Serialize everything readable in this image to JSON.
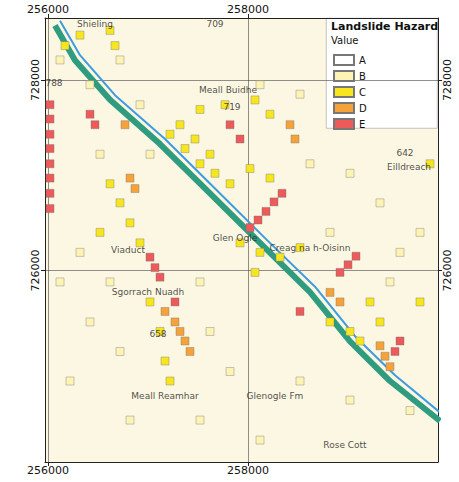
{
  "chart_data": {
    "type": "map",
    "title": "Landslide Hazard",
    "subtitle": "Value",
    "xlim": [
      255970,
      259900
    ],
    "ylim": [
      723990,
      728650
    ],
    "xticks": [
      256000,
      258000
    ],
    "yticks": [
      726000,
      728000
    ],
    "grid": true,
    "legend": "upper right",
    "series": [
      {
        "name": "A",
        "color": "#ffffff",
        "marker": "square",
        "values": []
      },
      {
        "name": "B",
        "color": "#fdf3b4",
        "marker": "square",
        "values": [
          [
            256120,
            728210
          ],
          [
            256420,
            727950
          ],
          [
            256720,
            728210
          ],
          [
            256920,
            727740
          ],
          [
            257020,
            727220
          ],
          [
            256520,
            727220
          ],
          [
            256320,
            726190
          ],
          [
            256620,
            725880
          ],
          [
            256420,
            725460
          ],
          [
            256720,
            725150
          ],
          [
            257520,
            725880
          ],
          [
            257620,
            725360
          ],
          [
            257820,
            724940
          ],
          [
            256820,
            724430
          ],
          [
            257520,
            724430
          ],
          [
            258120,
            727950
          ],
          [
            258520,
            727850
          ],
          [
            258620,
            727120
          ],
          [
            259020,
            727020
          ],
          [
            259320,
            726710
          ],
          [
            258820,
            726400
          ],
          [
            259520,
            726190
          ],
          [
            259420,
            725880
          ],
          [
            259720,
            726400
          ],
          [
            258520,
            724840
          ],
          [
            259020,
            724640
          ],
          [
            259620,
            724530
          ],
          [
            258120,
            724220
          ],
          [
            256120,
            725880
          ],
          [
            256220,
            724840
          ]
        ]
      },
      {
        "name": "C",
        "color": "#f7e51f",
        "marker": "square",
        "values": [
          [
            257220,
            727430
          ],
          [
            257370,
            727280
          ],
          [
            257520,
            727120
          ],
          [
            257670,
            727020
          ],
          [
            257820,
            726910
          ],
          [
            257320,
            727530
          ],
          [
            257470,
            727380
          ],
          [
            257620,
            727220
          ],
          [
            258020,
            727070
          ],
          [
            258220,
            726970
          ],
          [
            257520,
            727690
          ],
          [
            257770,
            727740
          ],
          [
            258070,
            727790
          ],
          [
            258220,
            727640
          ],
          [
            257920,
            726290
          ],
          [
            258120,
            726190
          ],
          [
            258320,
            726140
          ],
          [
            258520,
            726240
          ],
          [
            258070,
            725980
          ],
          [
            256620,
            726910
          ],
          [
            256720,
            726710
          ],
          [
            256820,
            726500
          ],
          [
            256920,
            726290
          ],
          [
            256520,
            726400
          ],
          [
            257020,
            725670
          ],
          [
            257120,
            725360
          ],
          [
            257170,
            725050
          ],
          [
            257220,
            724840
          ],
          [
            256170,
            728360
          ],
          [
            256320,
            728470
          ],
          [
            256620,
            728520
          ],
          [
            256670,
            728360
          ],
          [
            258820,
            725460
          ],
          [
            259020,
            725360
          ],
          [
            259120,
            725260
          ],
          [
            259220,
            725670
          ],
          [
            259320,
            725460
          ],
          [
            259820,
            727120
          ],
          [
            259720,
            725670
          ]
        ]
      },
      {
        "name": "D",
        "color": "#f5a23a",
        "marker": "square",
        "values": [
          [
            257170,
            725570
          ],
          [
            257270,
            725460
          ],
          [
            257320,
            725360
          ],
          [
            257370,
            725260
          ],
          [
            257420,
            725150
          ],
          [
            256820,
            726970
          ],
          [
            256870,
            726860
          ],
          [
            256770,
            727530
          ],
          [
            259320,
            725210
          ],
          [
            259370,
            725100
          ],
          [
            259420,
            724990
          ],
          [
            258820,
            725770
          ],
          [
            258920,
            725670
          ],
          [
            258420,
            727530
          ],
          [
            258470,
            727380
          ]
        ]
      },
      {
        "name": "E",
        "color": "#ec5a5a",
        "marker": "square",
        "values": [
          [
            256020,
            727740
          ],
          [
            256020,
            727590
          ],
          [
            256020,
            727430
          ],
          [
            256020,
            727280
          ],
          [
            256020,
            727120
          ],
          [
            256020,
            726970
          ],
          [
            256020,
            726810
          ],
          [
            256020,
            726650
          ],
          [
            256420,
            727640
          ],
          [
            256470,
            727530
          ],
          [
            258020,
            726450
          ],
          [
            258100,
            726530
          ],
          [
            258180,
            726620
          ],
          [
            258260,
            726720
          ],
          [
            258340,
            726810
          ],
          [
            257020,
            726140
          ],
          [
            257070,
            726030
          ],
          [
            257120,
            725930
          ],
          [
            258920,
            725980
          ],
          [
            259000,
            726060
          ],
          [
            259080,
            726150
          ],
          [
            257820,
            727530
          ],
          [
            257920,
            727380
          ],
          [
            259470,
            725150
          ],
          [
            259520,
            725260
          ],
          [
            257270,
            725670
          ],
          [
            258520,
            725570
          ]
        ]
      }
    ],
    "lines": [
      {
        "color": "#2f9c7f",
        "line_style": "solid",
        "values": [
          [
            256070,
            728570
          ],
          [
            256270,
            728207
          ],
          [
            256620,
            727793
          ],
          [
            257120,
            727327
          ],
          [
            257620,
            726809
          ],
          [
            258120,
            726291
          ],
          [
            258620,
            725773
          ],
          [
            259020,
            725255
          ],
          [
            259420,
            724840
          ],
          [
            259920,
            724420
          ]
        ]
      },
      {
        "color": "#3d9be0",
        "line_style": "solid",
        "values": [
          [
            256120,
            728620
          ],
          [
            256320,
            728260
          ],
          [
            256670,
            727840
          ],
          [
            257170,
            727380
          ],
          [
            257670,
            726860
          ],
          [
            258170,
            726340
          ],
          [
            258670,
            725830
          ],
          [
            259070,
            725310
          ],
          [
            259470,
            724900
          ],
          [
            259920,
            724510
          ]
        ]
      }
    ],
    "annotations": [
      {
        "text": "709",
        "x": 257670,
        "y": 728590
      },
      {
        "text": "Shieling",
        "x": 256470,
        "y": 728590
      },
      {
        "text": "788",
        "x": 256060,
        "y": 727970
      },
      {
        "text": "Meall Buidhe",
        "x": 257800,
        "y": 727896
      },
      {
        "text": "719",
        "x": 257840,
        "y": 727720
      },
      {
        "text": "642",
        "x": 259570,
        "y": 727230
      },
      {
        "text": "Eilldreach",
        "x": 259610,
        "y": 727090
      },
      {
        "text": "Creag na h-Oisinn",
        "x": 258620,
        "y": 726239
      },
      {
        "text": "Viaduct",
        "x": 256800,
        "y": 726218
      },
      {
        "text": "Glen Ogle",
        "x": 257870,
        "y": 726342
      },
      {
        "text": "Sgorrach Nuadh",
        "x": 257000,
        "y": 725773
      },
      {
        "text": "658",
        "x": 257100,
        "y": 725338
      },
      {
        "text": "Meall Reamhar",
        "x": 257170,
        "y": 724685
      },
      {
        "text": "Glenogle Fm",
        "x": 258270,
        "y": 724685
      },
      {
        "text": "Rose Cott",
        "x": 258970,
        "y": 724167
      }
    ]
  }
}
